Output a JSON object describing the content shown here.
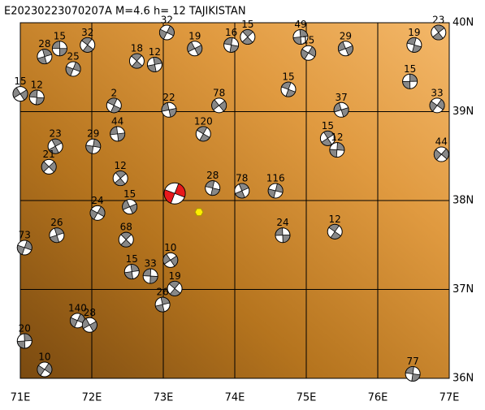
{
  "chart_data": {
    "type": "map",
    "title": "E20230223070207A M=4.6 h= 12 TAJIKISTAN",
    "xlim": [
      71,
      77
    ],
    "ylim": [
      36,
      40
    ],
    "xticks": [
      {
        "value": 71,
        "label": "71E"
      },
      {
        "value": 72,
        "label": "72E"
      },
      {
        "value": 73,
        "label": "73E"
      },
      {
        "value": 74,
        "label": "74E"
      },
      {
        "value": 75,
        "label": "75E"
      },
      {
        "value": 76,
        "label": "76E"
      },
      {
        "value": 77,
        "label": "77E"
      }
    ],
    "yticks": [
      {
        "value": 36,
        "label": "36N"
      },
      {
        "value": 37,
        "label": "37N"
      },
      {
        "value": 38,
        "label": "38N"
      },
      {
        "value": 39,
        "label": "39N"
      },
      {
        "value": 40,
        "label": "40N"
      }
    ],
    "grid": true,
    "main_event": {
      "lon": 73.16,
      "lat": 38.08,
      "color": "#e8191c"
    },
    "epicenter": {
      "lon": 73.5,
      "lat": 37.87,
      "color": "#ffee00"
    },
    "events": [
      {
        "lon": 71.55,
        "lat": 39.71,
        "depth": 15
      },
      {
        "lon": 71.94,
        "lat": 39.75,
        "depth": 32
      },
      {
        "lon": 71.34,
        "lat": 39.62,
        "depth": 28
      },
      {
        "lon": 71.74,
        "lat": 39.48,
        "depth": 25
      },
      {
        "lon": 71.0,
        "lat": 39.2,
        "depth": 15
      },
      {
        "lon": 71.23,
        "lat": 39.16,
        "depth": 12
      },
      {
        "lon": 72.63,
        "lat": 39.57,
        "depth": 18
      },
      {
        "lon": 72.88,
        "lat": 39.53,
        "depth": 12
      },
      {
        "lon": 73.05,
        "lat": 39.89,
        "depth": 32
      },
      {
        "lon": 73.44,
        "lat": 39.71,
        "depth": 19
      },
      {
        "lon": 73.95,
        "lat": 39.75,
        "depth": 16
      },
      {
        "lon": 74.18,
        "lat": 39.84,
        "depth": 15
      },
      {
        "lon": 74.92,
        "lat": 39.84,
        "depth": 49
      },
      {
        "lon": 75.03,
        "lat": 39.66,
        "depth": 15
      },
      {
        "lon": 75.55,
        "lat": 39.71,
        "depth": 29
      },
      {
        "lon": 76.51,
        "lat": 39.75,
        "depth": 19
      },
      {
        "lon": 76.85,
        "lat": 39.89,
        "depth": 23
      },
      {
        "lon": 76.45,
        "lat": 39.34,
        "depth": 15
      },
      {
        "lon": 76.83,
        "lat": 39.07,
        "depth": 33
      },
      {
        "lon": 75.49,
        "lat": 39.02,
        "depth": 37
      },
      {
        "lon": 74.75,
        "lat": 39.25,
        "depth": 15
      },
      {
        "lon": 75.3,
        "lat": 38.7,
        "depth": 15
      },
      {
        "lon": 75.43,
        "lat": 38.57,
        "depth": 12
      },
      {
        "lon": 76.89,
        "lat": 38.52,
        "depth": 44
      },
      {
        "lon": 73.08,
        "lat": 39.02,
        "depth": 22
      },
      {
        "lon": 72.31,
        "lat": 39.07,
        "depth": 2
      },
      {
        "lon": 71.49,
        "lat": 38.61,
        "depth": 23
      },
      {
        "lon": 72.02,
        "lat": 38.61,
        "depth": 29
      },
      {
        "lon": 71.4,
        "lat": 38.38,
        "depth": 21
      },
      {
        "lon": 72.36,
        "lat": 38.75,
        "depth": 44
      },
      {
        "lon": 73.56,
        "lat": 38.75,
        "depth": 120
      },
      {
        "lon": 74.1,
        "lat": 38.11,
        "depth": 78
      },
      {
        "lon": 74.57,
        "lat": 38.11,
        "depth": 116
      },
      {
        "lon": 73.78,
        "lat": 39.07,
        "depth": 78
      },
      {
        "lon": 74.67,
        "lat": 37.61,
        "depth": 24
      },
      {
        "lon": 75.4,
        "lat": 37.65,
        "depth": 12
      },
      {
        "lon": 71.51,
        "lat": 37.61,
        "depth": 26
      },
      {
        "lon": 71.06,
        "lat": 37.47,
        "depth": 73
      },
      {
        "lon": 73.1,
        "lat": 37.33,
        "depth": 10
      },
      {
        "lon": 72.82,
        "lat": 37.15,
        "depth": 33
      },
      {
        "lon": 73.16,
        "lat": 37.01,
        "depth": 19
      },
      {
        "lon": 72.99,
        "lat": 36.83,
        "depth": 26
      },
      {
        "lon": 71.8,
        "lat": 36.65,
        "depth": 140
      },
      {
        "lon": 71.97,
        "lat": 36.6,
        "depth": 28
      },
      {
        "lon": 76.49,
        "lat": 36.05,
        "depth": 77
      },
      {
        "lon": 72.48,
        "lat": 37.56,
        "depth": 68
      },
      {
        "lon": 72.56,
        "lat": 37.2,
        "depth": 15
      },
      {
        "lon": 72.08,
        "lat": 37.86,
        "depth": 24
      },
      {
        "lon": 72.53,
        "lat": 37.93,
        "depth": 15
      },
      {
        "lon": 73.69,
        "lat": 38.14,
        "depth": 28
      },
      {
        "lon": 72.4,
        "lat": 38.25,
        "depth": 12
      },
      {
        "lon": 71.06,
        "lat": 36.42,
        "depth": 20
      },
      {
        "lon": 71.34,
        "lat": 36.1,
        "depth": 10
      }
    ]
  }
}
